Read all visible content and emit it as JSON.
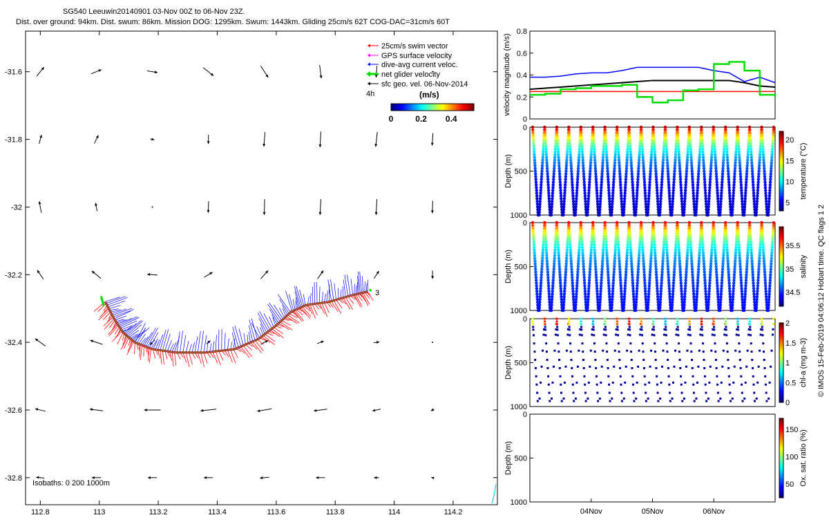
{
  "header": {
    "title_line1": "SG540 Leeuwin20140901 03-Nov 00Z to 06-Nov 23Z.",
    "title_line2": "Dist. over ground: 94km. Dist. swum: 86km. Mission DOG: 1295km. Swum: 1443km. Gliding 25cm/s 62T COG-DAC=31cm/s 60T"
  },
  "colors": {
    "swim_vector": "#ff0000",
    "gps_surface_velocity": "#ff00ff",
    "dive_avg_current": "#0000ff",
    "net_glider_velocity": "#00dd00",
    "sfc_geo_vel": "#000000",
    "track": "#7a1a10",
    "colormap": [
      "#00007f",
      "#0000ff",
      "#0080ff",
      "#00ffff",
      "#80ff80",
      "#ffff00",
      "#ff8000",
      "#ff0000",
      "#7f0000"
    ]
  },
  "chart_data": [
    {
      "type": "scatter",
      "panel": "map",
      "xlim": [
        112.75,
        114.35
      ],
      "ylim": [
        -32.88,
        -31.48
      ],
      "x_ticks": [
        "112.8",
        "113",
        "113.2",
        "113.4",
        "113.6",
        "113.8",
        "114",
        "114.2"
      ],
      "x_tick_values": [
        112.8,
        113.0,
        113.2,
        113.4,
        113.6,
        113.8,
        114.0,
        114.2
      ],
      "y_ticks": [
        "-31.6",
        "-31.8",
        "-32",
        "-32.2",
        "-32.4",
        "-32.6",
        "-32.8"
      ],
      "y_tick_values": [
        -31.6,
        -31.8,
        -32.0,
        -32.2,
        -32.4,
        -32.6,
        -32.8
      ],
      "legend": {
        "position": "top-right",
        "entries": [
          "25cm/s swim vector",
          "GPS surface velocity",
          "dive-avg current veloc.",
          "net glider velocity",
          "sfc geo. vel. 06-Nov-2014"
        ],
        "interval": "4h",
        "colorbar_label": "(m/s)",
        "colorbar_ticks": [
          "0",
          "0.2",
          "0.4"
        ],
        "colorbar_range": [
          0,
          0.55
        ]
      },
      "isobaths_label": "Isobaths: 0   200  1000m",
      "track_end_label": "3",
      "track": [
        [
          113.02,
          -32.28
        ],
        [
          113.05,
          -32.33
        ],
        [
          113.08,
          -32.37
        ],
        [
          113.12,
          -32.4
        ],
        [
          113.18,
          -32.42
        ],
        [
          113.26,
          -32.43
        ],
        [
          113.36,
          -32.43
        ],
        [
          113.46,
          -32.42
        ],
        [
          113.54,
          -32.39
        ],
        [
          113.6,
          -32.35
        ],
        [
          113.65,
          -32.31
        ],
        [
          113.7,
          -32.29
        ],
        [
          113.78,
          -32.28
        ],
        [
          113.86,
          -32.26
        ],
        [
          113.91,
          -32.25
        ]
      ],
      "sfc_geo_vel": {
        "lons": [
          112.8,
          112.99,
          113.18,
          113.37,
          113.56,
          113.75,
          113.94,
          114.13
        ],
        "lats": [
          -31.6,
          -31.8,
          -32.0,
          -32.2,
          -32.4,
          -32.6,
          -32.8
        ],
        "u": [
          [
            0.18,
            0.25,
            0.25,
            0.25,
            0.18,
            0.04,
            -0.02,
            0.0
          ],
          [
            0.06,
            0.1,
            0.1,
            0.0,
            -0.03,
            -0.02,
            -0.04,
            -0.02
          ],
          [
            -0.05,
            -0.04,
            0.0,
            -0.01,
            -0.01,
            -0.02,
            -0.02,
            -0.01
          ],
          [
            -0.15,
            -0.22,
            -0.25,
            0.2,
            0.18,
            0.14,
            0.12,
            0.0
          ],
          [
            -0.25,
            -0.3,
            -0.12,
            0.1,
            0.18,
            0.16,
            0.14,
            0.0
          ],
          [
            -0.25,
            -0.32,
            -0.4,
            -0.38,
            -0.35,
            -0.32,
            -0.2,
            -0.08
          ],
          [
            -0.2,
            -0.22,
            -0.22,
            -0.22,
            -0.22,
            -0.22,
            -0.12,
            -0.06
          ]
        ],
        "v": [
          [
            0.22,
            0.1,
            -0.04,
            -0.2,
            -0.28,
            -0.32,
            -0.28,
            0.0
          ],
          [
            0.22,
            0.2,
            -0.02,
            -0.22,
            -0.35,
            -0.38,
            -0.36,
            -0.3
          ],
          [
            0.28,
            0.2,
            0.0,
            -0.28,
            -0.38,
            -0.38,
            -0.38,
            -0.3
          ],
          [
            0.22,
            0.18,
            0.02,
            0.12,
            0.2,
            0.2,
            0.18,
            -0.2
          ],
          [
            0.18,
            0.1,
            -0.12,
            0.08,
            0.1,
            0.06,
            0.02,
            0.0
          ],
          [
            0.06,
            0.04,
            0.0,
            -0.04,
            -0.06,
            -0.04,
            -0.04,
            -0.04
          ],
          [
            0.02,
            0.0,
            0.0,
            0.0,
            -0.02,
            0.0,
            0.0,
            0.02
          ]
        ]
      }
    },
    {
      "type": "line",
      "panel": "velocity",
      "ylabel": "velocity magnitude (m/s)",
      "ylim": [
        0,
        0.8
      ],
      "y_ticks": [
        "0",
        "0.2",
        "0.4",
        "0.6",
        "0.8"
      ],
      "y_tick_values": [
        0,
        0.2,
        0.4,
        0.6,
        0.8
      ],
      "x": [
        0,
        0.25,
        0.5,
        0.75,
        1,
        1.25,
        1.5,
        1.75,
        2,
        2.25,
        2.5,
        2.75,
        3,
        3.25,
        3.5,
        3.75,
        4
      ],
      "series": [
        {
          "values": [
            0.25,
            0.25,
            0.25,
            0.25,
            0.25,
            0.25,
            0.25,
            0.25,
            0.25,
            0.25,
            0.25,
            0.25,
            0.25,
            0.25,
            0.25,
            0.25,
            0.25
          ]
        },
        {
          "values": [
            0.38,
            0.38,
            0.39,
            0.41,
            0.42,
            0.42,
            0.44,
            0.47,
            0.47,
            0.47,
            0.47,
            0.47,
            0.44,
            0.42,
            0.34,
            0.38,
            0.33
          ]
        },
        {
          "values": [
            0.27,
            0.28,
            0.29,
            0.3,
            0.31,
            0.32,
            0.33,
            0.34,
            0.35,
            0.35,
            0.35,
            0.35,
            0.35,
            0.35,
            0.33,
            0.3,
            0.29
          ]
        },
        {
          "values": [
            0.22,
            0.23,
            0.27,
            0.28,
            0.3,
            0.3,
            0.31,
            0.2,
            0.15,
            0.17,
            0.26,
            0.27,
            0.5,
            0.52,
            0.44,
            0.22,
            0.2
          ]
        }
      ]
    },
    {
      "type": "scatter",
      "panel": "temperature",
      "ylabel": "Depth (m)",
      "ylim": [
        1000,
        0
      ],
      "y_ticks": [
        "0",
        "500",
        "1000"
      ],
      "y_tick_values": [
        0,
        500,
        1000
      ],
      "colorbar_label": "temperature (°C)",
      "colorbar_ticks": [
        "5",
        "10",
        "15",
        "20"
      ],
      "colorbar_tick_values": [
        5,
        10,
        15,
        20
      ],
      "colorbar_range": [
        3,
        22
      ],
      "dives": 20,
      "max_depth": 1000,
      "surface_value": 21,
      "deep_value": 4
    },
    {
      "type": "scatter",
      "panel": "salinity",
      "ylabel": "Depth (m)",
      "ylim": [
        1000,
        0
      ],
      "y_ticks": [
        "0",
        "500",
        "1000"
      ],
      "y_tick_values": [
        0,
        500,
        1000
      ],
      "colorbar_label": "salinity",
      "colorbar_ticks": [
        "34.5",
        "35",
        "35.5"
      ],
      "colorbar_tick_values": [
        34.5,
        35,
        35.5
      ],
      "colorbar_range": [
        34.2,
        35.9
      ],
      "dives": 20,
      "max_depth": 1000,
      "surface_value": 35.7,
      "deep_value": 34.4
    },
    {
      "type": "scatter",
      "panel": "chl-a",
      "ylabel": "Depth (m)",
      "ylim": [
        1000,
        0
      ],
      "y_ticks": [
        "0",
        "500",
        "1000"
      ],
      "y_tick_values": [
        0,
        500,
        1000
      ],
      "colorbar_label": "chl-a (mg m-3)",
      "colorbar_ticks": [
        "0",
        "0.5",
        "1",
        "1.5",
        "2"
      ],
      "colorbar_tick_values": [
        0,
        0.5,
        1,
        1.5,
        2
      ],
      "colorbar_range": [
        0,
        2
      ],
      "dives": 20,
      "max_depth": 1000
    },
    {
      "type": "line",
      "panel": "oxygen",
      "ylabel": "Depth (m)",
      "ylim": [
        1000,
        0
      ],
      "y_ticks": [
        "0",
        "500",
        "1000"
      ],
      "y_tick_values": [
        0,
        500,
        1000
      ],
      "colorbar_label": "Ox. sat. ratio (%)",
      "colorbar_ticks": [
        "50",
        "100",
        "150"
      ],
      "colorbar_tick_values": [
        50,
        100,
        150
      ],
      "colorbar_range": [
        25,
        170
      ],
      "x_ticks": [
        "04Nov",
        "05Nov",
        "06Nov"
      ],
      "x_tick_values": [
        1,
        2,
        3
      ],
      "xlim": [
        0,
        4
      ]
    }
  ],
  "side_note": "© IMOS 15-Feb-2019 04:06:12 Hobart time. QC flags 1  2"
}
